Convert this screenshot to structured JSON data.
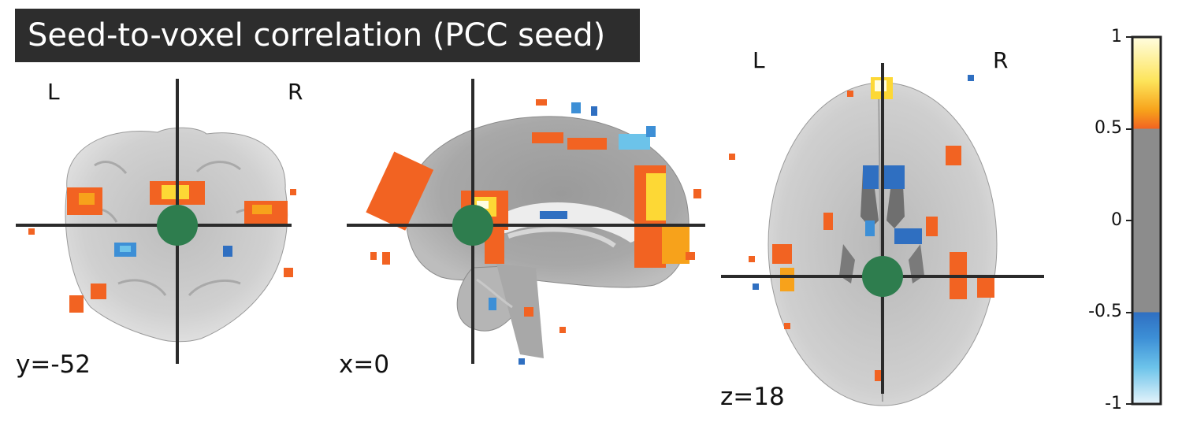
{
  "title": "Seed-to-voxel correlation (PCC seed)",
  "views": {
    "coronal": {
      "coord_label": "y=-52",
      "left_label": "L",
      "right_label": "R"
    },
    "sagittal": {
      "coord_label": "x=0"
    },
    "axial": {
      "coord_label": "z=18",
      "left_label": "L",
      "right_label": "R"
    }
  },
  "colorbar": {
    "ticks": [
      "1",
      "0.5",
      "0",
      "-0.5",
      "-1"
    ],
    "threshold_low": -0.5,
    "threshold_high": 0.5,
    "colors": {
      "positive_low": "#f26322",
      "positive_high": "#fffde0",
      "negative_low": "#2f6fc1",
      "negative_high": "#e6f4fb",
      "neutral": "#8c8c8c"
    }
  },
  "seed_marker_color": "#2e7d4e",
  "crosshair_color": "#2b2b2b"
}
